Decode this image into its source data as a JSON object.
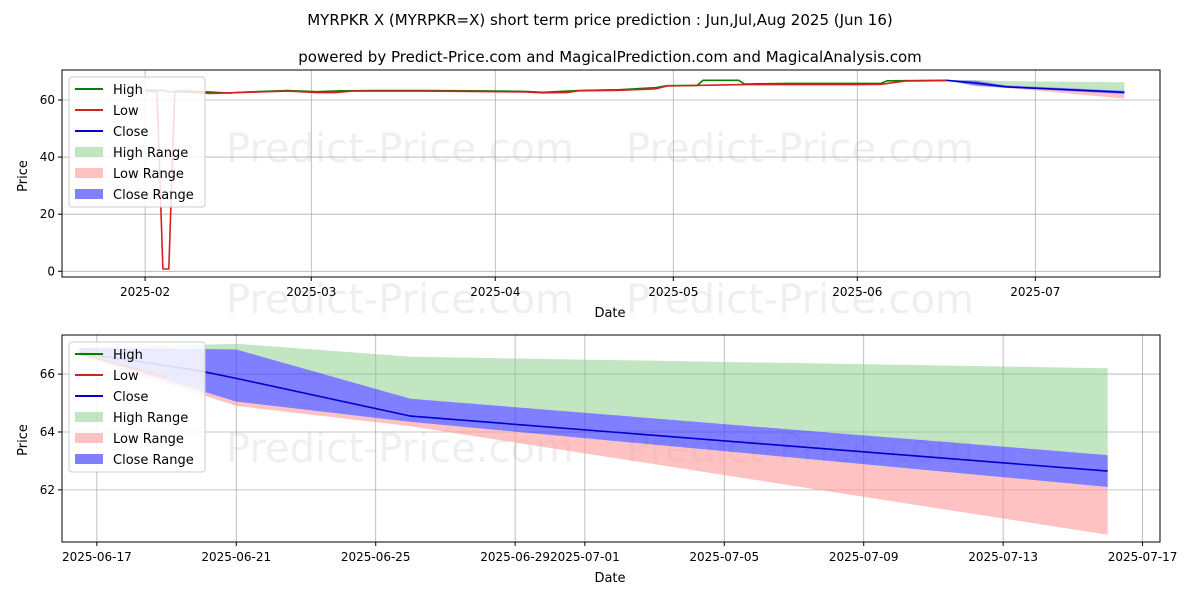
{
  "titles": {
    "main": "MYRPKR X (MYRPKR=X) short term price prediction : Jun,Jul,Aug 2025 (Jun 16)",
    "sub": "powered by Predict-Price.com and MagicalPrediction.com and MagicalAnalysis.com"
  },
  "watermark": "Predict-Price.com",
  "colors": {
    "high": "#008000",
    "low": "#d62020",
    "close": "#0000cc",
    "high_range": "#8fcf8f",
    "low_range": "#ff9a9a",
    "close_range": "#3b3bff"
  },
  "legend": [
    "High",
    "Low",
    "Close",
    "High Range",
    "Low Range",
    "Close Range"
  ],
  "chart_data": [
    {
      "type": "line",
      "name": "history-and-forecast",
      "xlabel": "Date",
      "ylabel": "Price",
      "x_range": [
        "2025-01-18",
        "2025-07-22"
      ],
      "ylim": [
        -2,
        70.5
      ],
      "x_ticks": [
        {
          "date": "2025-02-01",
          "label": "2025-02"
        },
        {
          "date": "2025-03-01",
          "label": "2025-03"
        },
        {
          "date": "2025-04-01",
          "label": "2025-04"
        },
        {
          "date": "2025-05-01",
          "label": "2025-05"
        },
        {
          "date": "2025-06-01",
          "label": "2025-06"
        },
        {
          "date": "2025-07-01",
          "label": "2025-07"
        }
      ],
      "y_ticks": [
        0,
        20,
        40,
        60
      ],
      "grid": true,
      "legend_position": "upper-left",
      "series": [
        {
          "name": "High",
          "points": [
            [
              "2025-02-01",
              63.4
            ],
            [
              "2025-02-04",
              63.4
            ],
            [
              "2025-02-05",
              62.8
            ],
            [
              "2025-02-07",
              63.2
            ],
            [
              "2025-02-12",
              62.8
            ],
            [
              "2025-02-15",
              62.4
            ],
            [
              "2025-02-18",
              62.8
            ],
            [
              "2025-02-25",
              63.3
            ],
            [
              "2025-03-02",
              62.9
            ],
            [
              "2025-03-06",
              63.2
            ],
            [
              "2025-03-12",
              63.3
            ],
            [
              "2025-03-20",
              63.3
            ],
            [
              "2025-03-28",
              63.2
            ],
            [
              "2025-04-06",
              63.0
            ],
            [
              "2025-04-09",
              62.7
            ],
            [
              "2025-04-15",
              63.3
            ],
            [
              "2025-04-22",
              63.6
            ],
            [
              "2025-04-28",
              64.3
            ],
            [
              "2025-04-30",
              65.0
            ],
            [
              "2025-05-05",
              65.1
            ],
            [
              "2025-05-06",
              66.9
            ],
            [
              "2025-05-12",
              66.9
            ],
            [
              "2025-05-13",
              65.6
            ],
            [
              "2025-05-20",
              65.8
            ],
            [
              "2025-06-01",
              65.8
            ],
            [
              "2025-06-05",
              65.8
            ],
            [
              "2025-06-06",
              66.7
            ],
            [
              "2025-06-16",
              66.9
            ]
          ]
        },
        {
          "name": "Low",
          "points": [
            [
              "2025-02-01",
              63.2
            ],
            [
              "2025-02-03",
              63.0
            ],
            [
              "2025-02-04",
              0.8
            ],
            [
              "2025-02-05",
              0.8
            ],
            [
              "2025-02-06",
              62.9
            ],
            [
              "2025-02-09",
              62.7
            ],
            [
              "2025-02-12",
              62.3
            ],
            [
              "2025-02-18",
              62.7
            ],
            [
              "2025-02-25",
              63.1
            ],
            [
              "2025-03-02",
              62.6
            ],
            [
              "2025-03-05",
              62.6
            ],
            [
              "2025-03-08",
              63.1
            ],
            [
              "2025-03-20",
              63.1
            ],
            [
              "2025-03-28",
              63.0
            ],
            [
              "2025-04-06",
              62.8
            ],
            [
              "2025-04-09",
              62.5
            ],
            [
              "2025-04-13",
              62.6
            ],
            [
              "2025-04-15",
              63.2
            ],
            [
              "2025-04-22",
              63.4
            ],
            [
              "2025-04-28",
              63.9
            ],
            [
              "2025-04-30",
              64.9
            ],
            [
              "2025-05-08",
              65.2
            ],
            [
              "2025-05-13",
              65.4
            ],
            [
              "2025-05-20",
              65.4
            ],
            [
              "2025-06-01",
              65.4
            ],
            [
              "2025-06-05",
              65.5
            ],
            [
              "2025-06-09",
              66.6
            ],
            [
              "2025-06-16",
              66.8
            ]
          ]
        },
        {
          "name": "Close",
          "points": [
            [
              "2025-06-16",
              66.9
            ],
            [
              "2025-06-21",
              65.9
            ],
            [
              "2025-06-26",
              64.6
            ],
            [
              "2025-07-16",
              62.7
            ]
          ]
        }
      ],
      "ranges": [
        {
          "name": "High Range",
          "x": [
            "2025-06-16",
            "2025-06-21",
            "2025-06-26",
            "2025-07-16"
          ],
          "upper": [
            66.9,
            67.0,
            66.6,
            66.2
          ],
          "lower": [
            66.9,
            66.8,
            65.1,
            63.2
          ]
        },
        {
          "name": "Low Range",
          "x": [
            "2025-06-16",
            "2025-06-21",
            "2025-06-26",
            "2025-07-16"
          ],
          "upper": [
            66.8,
            65.0,
            64.3,
            62.1
          ],
          "lower": [
            66.8,
            64.9,
            64.2,
            60.5
          ]
        },
        {
          "name": "Close Range",
          "x": [
            "2025-06-16",
            "2025-06-21",
            "2025-06-26",
            "2025-07-16"
          ],
          "upper": [
            66.9,
            66.8,
            65.1,
            63.2
          ],
          "lower": [
            66.8,
            65.0,
            64.3,
            62.1
          ]
        }
      ]
    },
    {
      "type": "line",
      "name": "forecast-zoom",
      "xlabel": "Date",
      "ylabel": "Price",
      "x_range": [
        "2025-06-16T00:00",
        "2025-07-17T12:00"
      ],
      "ylim": [
        60.2,
        67.35
      ],
      "x_ticks": [
        {
          "date": "2025-06-17",
          "label": "2025-06-17"
        },
        {
          "date": "2025-06-21",
          "label": "2025-06-21"
        },
        {
          "date": "2025-06-25",
          "label": "2025-06-25"
        },
        {
          "date": "2025-06-29",
          "label": "2025-06-29"
        },
        {
          "date": "2025-07-01",
          "label": "2025-07-01"
        },
        {
          "date": "2025-07-05",
          "label": "2025-07-05"
        },
        {
          "date": "2025-07-09",
          "label": "2025-07-09"
        },
        {
          "date": "2025-07-13",
          "label": "2025-07-13"
        },
        {
          "date": "2025-07-17",
          "label": "2025-07-17"
        }
      ],
      "y_ticks": [
        62,
        64,
        66
      ],
      "grid": true,
      "legend_position": "upper-left",
      "series": [
        {
          "name": "High",
          "points": [
            [
              "2025-06-16T12:00",
              66.75
            ],
            [
              "2025-06-17T00:00",
              66.7
            ]
          ]
        },
        {
          "name": "Low",
          "points": [
            [
              "2025-06-16T12:00",
              66.7
            ],
            [
              "2025-06-19T00:00",
              65.9
            ]
          ]
        },
        {
          "name": "Close",
          "points": [
            [
              "2025-06-16T12:00",
              66.75
            ],
            [
              "2025-06-20T00:00",
              66.1
            ],
            [
              "2025-06-21T00:00",
              65.85
            ],
            [
              "2025-06-26T00:00",
              64.55
            ],
            [
              "2025-07-16T00:00",
              62.65
            ]
          ]
        }
      ],
      "ranges": [
        {
          "name": "High Range",
          "x": [
            "2025-06-16T12:00",
            "2025-06-21T00:00",
            "2025-06-26T00:00",
            "2025-07-16T00:00"
          ],
          "upper": [
            66.9,
            67.05,
            66.6,
            66.2
          ],
          "lower": [
            66.75,
            66.85,
            65.15,
            63.2
          ]
        },
        {
          "name": "Low Range",
          "x": [
            "2025-06-16T12:00",
            "2025-06-21T00:00",
            "2025-06-26T00:00",
            "2025-07-16T00:00"
          ],
          "upper": [
            66.7,
            65.05,
            64.35,
            62.1
          ],
          "lower": [
            66.65,
            64.9,
            64.2,
            60.45
          ]
        },
        {
          "name": "Close Range",
          "x": [
            "2025-06-16T12:00",
            "2025-06-21T00:00",
            "2025-06-26T00:00",
            "2025-07-16T00:00"
          ],
          "upper": [
            66.9,
            66.85,
            65.15,
            63.2
          ],
          "lower": [
            66.7,
            65.05,
            64.35,
            62.1
          ]
        }
      ]
    }
  ]
}
